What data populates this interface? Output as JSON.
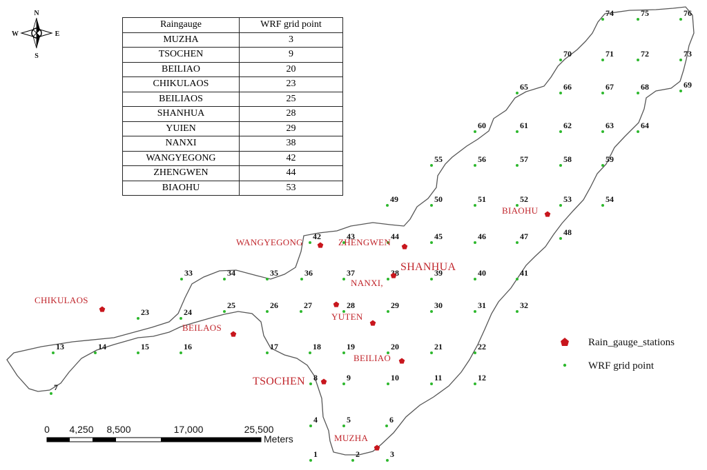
{
  "table": {
    "headers": [
      "Raingauge",
      "WRF grid point"
    ],
    "rows": [
      [
        "MUZHA",
        "3"
      ],
      [
        "TSOCHEN",
        "9"
      ],
      [
        "BEILIAO",
        "20"
      ],
      [
        "CHIKULAOS",
        "23"
      ],
      [
        "BEILIAOS",
        "25"
      ],
      [
        "SHANHUA",
        "28"
      ],
      [
        "YUIEN",
        "29"
      ],
      [
        "NANXI",
        "38"
      ],
      [
        "WANGYEGONG",
        "42"
      ],
      [
        "ZHENGWEN",
        "44"
      ],
      [
        "BIAOHU",
        "53"
      ]
    ]
  },
  "compass": {
    "n": "N",
    "s": "S",
    "e": "E",
    "w": "W"
  },
  "legend": {
    "rain_gauge": "Rain_gauge_stations",
    "wrf_point": "WRF grid point"
  },
  "scale_bar": {
    "ticks": [
      "0",
      "4,250",
      "8,500",
      "17,000",
      "25,500"
    ],
    "unit": "Meters"
  },
  "colors": {
    "gauge": "#c8161d",
    "grid_point": "#2eb82e",
    "label": "#c0252b",
    "boundary": "#555555"
  },
  "grid_points": [
    {
      "id": "1"
    },
    {
      "id": "2"
    },
    {
      "id": "3"
    },
    {
      "id": "4"
    },
    {
      "id": "5"
    },
    {
      "id": "6"
    },
    {
      "id": "7"
    },
    {
      "id": "8"
    },
    {
      "id": "9"
    },
    {
      "id": "10"
    },
    {
      "id": "11"
    },
    {
      "id": "12"
    },
    {
      "id": "13"
    },
    {
      "id": "14"
    },
    {
      "id": "15"
    },
    {
      "id": "16"
    },
    {
      "id": "17"
    },
    {
      "id": "18"
    },
    {
      "id": "19"
    },
    {
      "id": "20"
    },
    {
      "id": "21"
    },
    {
      "id": "22"
    },
    {
      "id": "23"
    },
    {
      "id": "24"
    },
    {
      "id": "25"
    },
    {
      "id": "26"
    },
    {
      "id": "27"
    },
    {
      "id": "28"
    },
    {
      "id": "29"
    },
    {
      "id": "30"
    },
    {
      "id": "31"
    },
    {
      "id": "32"
    },
    {
      "id": "33"
    },
    {
      "id": "34"
    },
    {
      "id": "35"
    },
    {
      "id": "36"
    },
    {
      "id": "37"
    },
    {
      "id": "38"
    },
    {
      "id": "39"
    },
    {
      "id": "40"
    },
    {
      "id": "41"
    },
    {
      "id": "42"
    },
    {
      "id": "43"
    },
    {
      "id": "44"
    },
    {
      "id": "45"
    },
    {
      "id": "46"
    },
    {
      "id": "47"
    },
    {
      "id": "48"
    },
    {
      "id": "49"
    },
    {
      "id": "50"
    },
    {
      "id": "51"
    },
    {
      "id": "52"
    },
    {
      "id": "53"
    },
    {
      "id": "54"
    },
    {
      "id": "55"
    },
    {
      "id": "56"
    },
    {
      "id": "57"
    },
    {
      "id": "58"
    },
    {
      "id": "59"
    },
    {
      "id": "60"
    },
    {
      "id": "61"
    },
    {
      "id": "62"
    },
    {
      "id": "63"
    },
    {
      "id": "64"
    },
    {
      "id": "65"
    },
    {
      "id": "66"
    },
    {
      "id": "67"
    },
    {
      "id": "68"
    },
    {
      "id": "69"
    },
    {
      "id": "70"
    },
    {
      "id": "71"
    },
    {
      "id": "72"
    },
    {
      "id": "73"
    },
    {
      "id": "74"
    },
    {
      "id": "75"
    },
    {
      "id": "76"
    }
  ],
  "stations": [
    {
      "name": "WANGYEGONG"
    },
    {
      "name": "ZHENGWEN"
    },
    {
      "name": "SHANHUA"
    },
    {
      "name": "NANXI,"
    },
    {
      "name": "YUTEN"
    },
    {
      "name": "BEILIAO"
    },
    {
      "name": "BEILAOS"
    },
    {
      "name": "CHIKULAOS"
    },
    {
      "name": "TSOCHEN"
    },
    {
      "name": "MUZHA"
    },
    {
      "name": "BIAOHU"
    }
  ]
}
